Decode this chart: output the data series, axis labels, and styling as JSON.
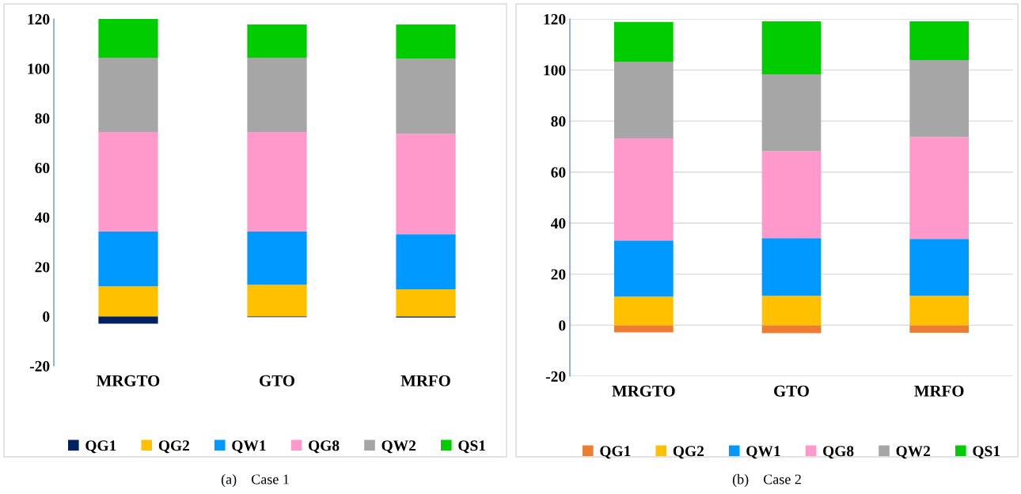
{
  "chart_data": [
    {
      "type": "bar",
      "stacked": true,
      "categories": [
        "MRGTO",
        "GTO",
        "MRFO"
      ],
      "series": [
        {
          "name": "QG1",
          "color": "#002060",
          "values": [
            -2.9,
            -0.3,
            -0.5
          ]
        },
        {
          "name": "QG2",
          "color": "#ffc000",
          "values": [
            12.1,
            12.8,
            10.9
          ]
        },
        {
          "name": "QW1",
          "color": "#0099ff",
          "values": [
            22.1,
            21.4,
            22.3
          ]
        },
        {
          "name": "QG8",
          "color": "#ff99cc",
          "values": [
            40.2,
            40.2,
            40.5
          ]
        },
        {
          "name": "QW2",
          "color": "#a6a6a6",
          "values": [
            30.0,
            30.0,
            30.3
          ]
        },
        {
          "name": "QS1",
          "color": "#00cc00",
          "values": [
            15.6,
            13.4,
            13.8
          ]
        }
      ],
      "ylim": [
        -20,
        120
      ],
      "yticks": [
        -20,
        0,
        20,
        40,
        60,
        80,
        100,
        120
      ],
      "grid": false,
      "legend": "bottom",
      "annotations": [
        "(a)    Case 1"
      ]
    },
    {
      "type": "bar",
      "stacked": true,
      "categories": [
        "MRGTO",
        "GTO",
        "MRFO"
      ],
      "series": [
        {
          "name": "QG1",
          "color": "#ed7d31",
          "values": [
            -2.8,
            -3.1,
            -3.0
          ]
        },
        {
          "name": "QG2",
          "color": "#ffc000",
          "values": [
            11.2,
            11.5,
            11.5
          ]
        },
        {
          "name": "QW1",
          "color": "#0099ff",
          "values": [
            22.0,
            22.6,
            22.3
          ]
        },
        {
          "name": "QG8",
          "color": "#ff99cc",
          "values": [
            40.0,
            34.1,
            40.0
          ]
        },
        {
          "name": "QW2",
          "color": "#a6a6a6",
          "values": [
            30.1,
            30.1,
            30.1
          ]
        },
        {
          "name": "QS1",
          "color": "#00cc00",
          "values": [
            15.5,
            20.8,
            15.2
          ]
        }
      ],
      "ylim": [
        -20,
        120
      ],
      "yticks": [
        -20,
        0,
        20,
        40,
        60,
        80,
        100,
        120
      ],
      "grid": "y",
      "legend": "bottom",
      "annotations": [
        "(b)    Case 2"
      ]
    }
  ]
}
